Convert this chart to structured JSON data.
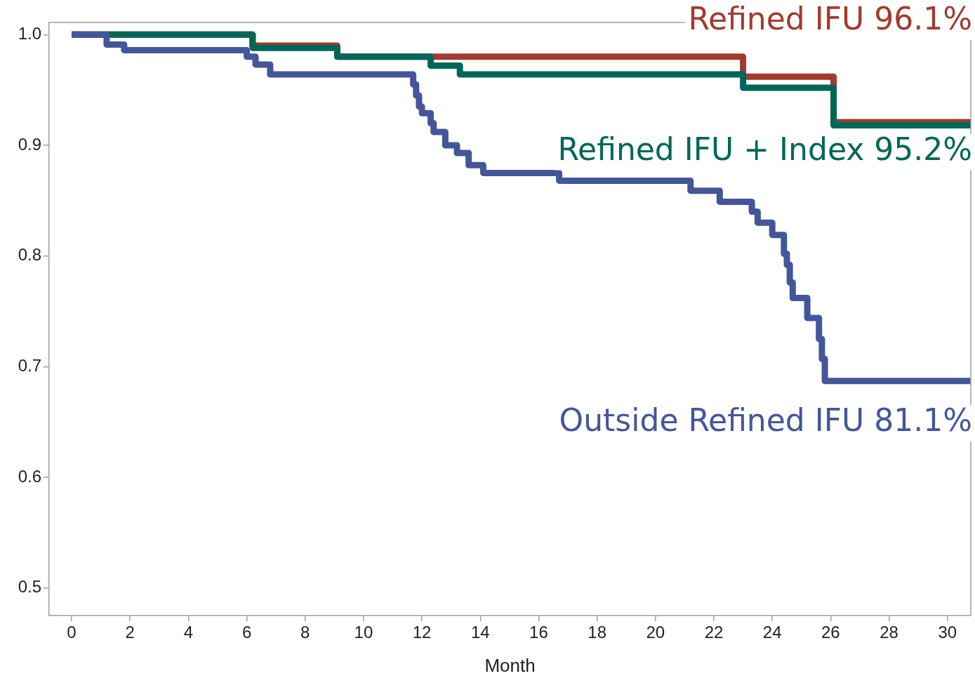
{
  "chart_data": {
    "type": "step",
    "xlabel": "Month",
    "xlim": [
      -0.77,
      30.8
    ],
    "xticks": [
      0,
      2,
      4,
      6,
      8,
      10,
      12,
      14,
      16,
      18,
      20,
      22,
      24,
      26,
      28,
      30
    ],
    "ylim": [
      0.475,
      1.011
    ],
    "yticks": [
      0.5,
      0.6,
      0.7,
      0.8,
      0.9,
      {
        "value": 1,
        "label": "1.0"
      }
    ],
    "grid": false,
    "legend": false,
    "line_style": "solid",
    "marker": "none",
    "series": [
      {
        "name": "Refined IFU 96.1%",
        "color": "#a23b2e",
        "x": [
          0,
          6.2,
          9.1,
          23.0,
          26.1,
          30.8
        ],
        "values": [
          1,
          0.99,
          0.98,
          0.962,
          0.921,
          0.921
        ]
      },
      {
        "name": "Refined IFU + Index 95.2%",
        "color": "#006758",
        "x": [
          0,
          6.2,
          9.1,
          12.3,
          13.3,
          23.0,
          26.1,
          30.8
        ],
        "values": [
          1,
          0.988,
          0.98,
          0.972,
          0.964,
          0.952,
          0.918,
          0.918
        ]
      },
      {
        "name": "Outside Refined IFU 81.1%",
        "color": "#44569a",
        "x": [
          0,
          1.2,
          1.8,
          6.0,
          6.3,
          6.8,
          11.7,
          11.8,
          11.9,
          12.0,
          12.3,
          12.4,
          12.8,
          13.2,
          13.6,
          14.1,
          16.7,
          21.2,
          22.2,
          23.3,
          23.5,
          24.0,
          24.4,
          24.5,
          24.6,
          24.7,
          25.2,
          25.6,
          25.7,
          25.8,
          30.8
        ],
        "values": [
          1,
          0.991,
          0.986,
          0.98,
          0.973,
          0.964,
          0.955,
          0.945,
          0.935,
          0.929,
          0.92,
          0.912,
          0.9,
          0.893,
          0.882,
          0.875,
          0.868,
          0.859,
          0.849,
          0.84,
          0.83,
          0.819,
          0.802,
          0.792,
          0.776,
          0.762,
          0.744,
          0.725,
          0.707,
          0.687,
          0.687
        ]
      }
    ]
  }
}
